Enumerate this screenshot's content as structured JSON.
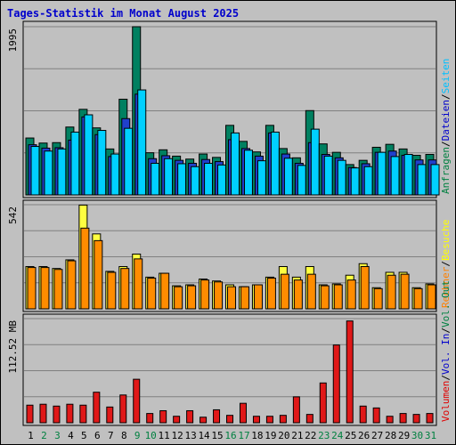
{
  "chart_data": {
    "type": "bar",
    "title": "Tages-Statistik im Monat August 2025",
    "x": {
      "days": [
        "1",
        "2",
        "3",
        "4",
        "5",
        "6",
        "7",
        "8",
        "9",
        "10",
        "11",
        "12",
        "13",
        "14",
        "15",
        "16",
        "17",
        "18",
        "19",
        "20",
        "21",
        "22",
        "23",
        "24",
        "25",
        "26",
        "27",
        "28",
        "29",
        "30",
        "31"
      ],
      "weekend_days": [
        "2",
        "3",
        "9",
        "10",
        "16",
        "17",
        "23",
        "24",
        "30",
        "31"
      ],
      "weekday_color": "#000000",
      "weekend_color": "#008040"
    },
    "panels": [
      {
        "id": "top",
        "y_max_label": "1995",
        "ylim": [
          0,
          1995
        ],
        "legend": [
          {
            "label": "Anfragen",
            "color": "#008040"
          },
          {
            "label": "/",
            "color": "#000000"
          },
          {
            "label": "Dateien",
            "color": "#0000cc"
          },
          {
            "label": "/",
            "color": "#000000"
          },
          {
            "label": "Seiten",
            "color": "#00c0ff"
          }
        ],
        "series": [
          {
            "name": "Anfragen",
            "color": "#008060",
            "values": [
              675,
              615,
              620,
              805,
              1015,
              795,
              545,
              1135,
              1995,
              500,
              535,
              460,
              425,
              485,
              445,
              825,
              635,
              510,
              825,
              550,
              440,
              1000,
              605,
              505,
              360,
              410,
              565,
              600,
              545,
              470,
              480
            ]
          },
          {
            "name": "Dateien",
            "color": "#2040cc",
            "values": [
              595,
              555,
              560,
              650,
              925,
              715,
              455,
              905,
              1195,
              430,
              465,
              410,
              375,
              420,
              395,
              655,
              550,
              460,
              735,
              485,
              375,
              620,
              480,
              440,
              325,
              370,
              505,
              520,
              470,
              415,
              415
            ]
          },
          {
            "name": "Seiten",
            "color": "#00d0ff",
            "values": [
              575,
              520,
              545,
              745,
              950,
              765,
              485,
              790,
              1245,
              375,
              430,
              370,
              335,
              375,
              355,
              735,
              530,
              405,
              745,
              435,
              350,
              780,
              460,
              410,
              320,
              335,
              505,
              455,
              480,
              360,
              360
            ]
          }
        ]
      },
      {
        "id": "middle",
        "y_max_label": "542",
        "ylim": [
          0,
          542
        ],
        "legend": [
          {
            "label": "Rechner",
            "color": "#ff8000"
          },
          {
            "label": "/",
            "color": "#000000"
          },
          {
            "label": "Besuche",
            "color": "#ffff00"
          }
        ],
        "series": [
          {
            "name": "Besuche",
            "color": "#ffff40",
            "values": [
              220,
              220,
              210,
              255,
              540,
              390,
              195,
              220,
              285,
              165,
              185,
              120,
              125,
              155,
              145,
              125,
              115,
              125,
              165,
              220,
              165,
              220,
              125,
              130,
              175,
              235,
              110,
              190,
              190,
              110,
              130
            ]
          },
          {
            "name": "Rechner",
            "color": "#ff8c00",
            "values": [
              215,
              215,
              205,
              250,
              420,
              355,
              190,
              210,
              260,
              160,
              185,
              115,
              120,
              150,
              140,
              115,
              115,
              125,
              160,
              180,
              150,
              180,
              120,
              125,
              150,
              220,
              105,
              175,
              180,
              105,
              125
            ]
          }
        ]
      },
      {
        "id": "bottom",
        "y_max_label": "112.52 MB",
        "ylim": [
          0,
          112.52
        ],
        "legend": [
          {
            "label": "Volumen",
            "color": "#e00000"
          },
          {
            "label": "/",
            "color": "#000000"
          },
          {
            "label": "Vol. In",
            "color": "#0000cc"
          },
          {
            "label": "/",
            "color": "#000000"
          },
          {
            "label": "Vol. Out",
            "color": "#008040"
          }
        ],
        "series": [
          {
            "name": "Volumen",
            "color": "#e01818",
            "values": [
              19,
              20,
              18,
              20,
              19,
              33,
              17,
              30,
              47,
              10,
              13,
              7,
              13,
              6,
              14,
              8,
              21,
              7,
              7,
              8,
              28,
              9,
              43,
              84,
              110,
              18,
              16,
              7,
              10,
              9,
              10
            ]
          }
        ]
      }
    ]
  }
}
